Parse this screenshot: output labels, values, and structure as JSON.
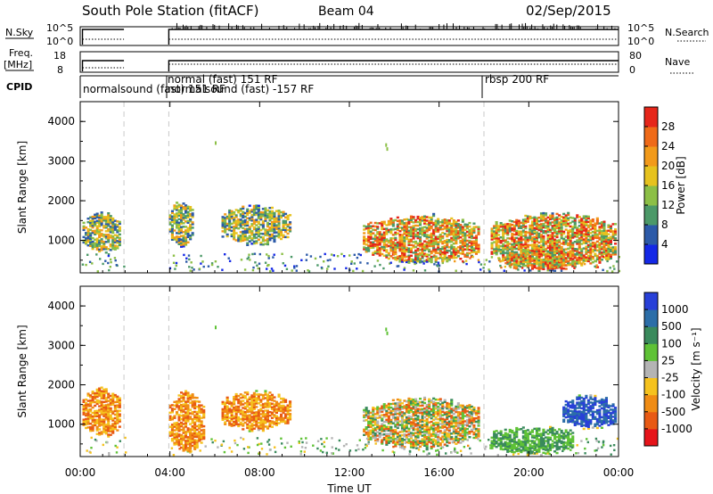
{
  "header": {
    "station": "South Pole Station (fitACF)",
    "beam": "Beam 04",
    "date": "02/Sep/2015"
  },
  "strip": {
    "nsky_label": "N.Sky",
    "nsky_tick_top": "10^5",
    "nsky_tick_bottom": "10^0",
    "nsearch_label": "N.Search",
    "freq_label_1": "Freq.",
    "freq_label_2": "[MHz]",
    "freq_tick_top": "18",
    "freq_tick_bottom": "8",
    "nave_label": "Nave",
    "nave_tick_top": "80",
    "nave_tick_bottom": "0",
    "cpid_label": "CPID",
    "cpid_names": [
      "normalsound (fast) 151 RF",
      "normal (fast) 151 RF",
      "normalsound (fast) -157 RF",
      "rbsp 200 RF"
    ]
  },
  "chart_data": [
    {
      "type": "heatmap",
      "title": "",
      "ylabel": "Slant Range [km]",
      "xlabel": "Time UT",
      "ylim": [
        180,
        4500
      ],
      "xlim_hours": [
        0,
        24
      ],
      "x_ticks": [
        "00:00",
        "04:00",
        "08:00",
        "12:00",
        "16:00",
        "20:00",
        "00:00"
      ],
      "y_ticks": [
        "1000",
        "2000",
        "3000",
        "4000"
      ],
      "colorbar": {
        "label": "Power [dB]",
        "ticks": [
          "4",
          "8",
          "12",
          "16",
          "20",
          "24",
          "28"
        ],
        "colors": [
          "#1428e6",
          "#2c5aa8",
          "#4c9968",
          "#8cbf46",
          "#e6c21e",
          "#f29a1a",
          "#ef6a18",
          "#e6261a"
        ]
      },
      "cpid_boundaries_hours": [
        1.95,
        3.95,
        18.0
      ],
      "data_gap_hours": [
        2.0,
        3.9
      ],
      "echo_regions": [
        {
          "t0": 0.1,
          "t1": 1.8,
          "r0": 700,
          "r1": 1650,
          "level": "mid"
        },
        {
          "t0": 3.95,
          "t1": 5.0,
          "r0": 850,
          "r1": 1950,
          "level": "mid"
        },
        {
          "t0": 6.3,
          "t1": 9.3,
          "r0": 900,
          "r1": 1850,
          "level": "mid"
        },
        {
          "t0": 12.6,
          "t1": 17.8,
          "r0": 450,
          "r1": 1600,
          "level": "high"
        },
        {
          "t0": 18.3,
          "t1": 23.9,
          "r0": 300,
          "r1": 1650,
          "level": "high"
        },
        {
          "t0": 19.0,
          "t1": 22.0,
          "r0": 250,
          "r1": 750,
          "level": "peak"
        }
      ]
    },
    {
      "type": "heatmap",
      "title": "",
      "ylabel": "Slant Range [km]",
      "xlabel": "Time UT",
      "ylim": [
        180,
        4500
      ],
      "xlim_hours": [
        0,
        24
      ],
      "x_ticks": [
        "00:00",
        "04:00",
        "08:00",
        "12:00",
        "16:00",
        "20:00",
        "00:00"
      ],
      "y_ticks": [
        "1000",
        "2000",
        "3000",
        "4000"
      ],
      "colorbar": {
        "label": "Velocity [m s⁻¹]",
        "ticks": [
          "1000",
          "500",
          "100",
          "25",
          "-25",
          "-100",
          "-500",
          "-1000"
        ],
        "colors": [
          "#2840d8",
          "#2c6ea8",
          "#3a8a5c",
          "#5fc236",
          "#b4b4b4",
          "#f5c21e",
          "#f08c14",
          "#e85a14",
          "#e6141a"
        ]
      },
      "cpid_boundaries_hours": [
        1.95,
        3.95,
        18.0
      ],
      "data_gap_hours": [
        2.0,
        3.9
      ],
      "echo_regions": [
        {
          "t0": 0.1,
          "t1": 1.8,
          "r0": 700,
          "r1": 1900,
          "sign": "negative"
        },
        {
          "t0": 3.95,
          "t1": 5.5,
          "r0": 300,
          "r1": 1800,
          "sign": "negative"
        },
        {
          "t0": 6.3,
          "t1": 9.3,
          "r0": 850,
          "r1": 1800,
          "sign": "negative"
        },
        {
          "t0": 12.6,
          "t1": 17.8,
          "r0": 400,
          "r1": 1650,
          "sign": "mixed"
        },
        {
          "t0": 18.3,
          "t1": 22.0,
          "r0": 250,
          "r1": 900,
          "sign": "positive-low"
        },
        {
          "t0": 21.5,
          "t1": 23.9,
          "r0": 900,
          "r1": 1700,
          "sign": "positive-high"
        }
      ]
    }
  ]
}
